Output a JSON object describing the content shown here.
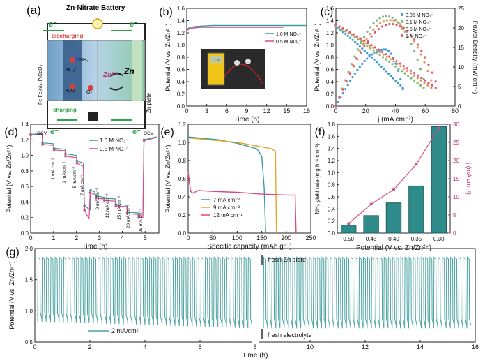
{
  "panels": {
    "a": "(a)",
    "b": "(b)",
    "c": "(c)",
    "d": "(d)",
    "e": "(e)",
    "f": "(f)",
    "g": "(g)"
  },
  "schematic": {
    "title": "Zn-Nitrate Battery",
    "electron_left": "e⁻",
    "electron_right": "e⁻",
    "electron_bottom_left": "e⁻",
    "electron_bottom_right": "e⁻",
    "discharging": "discharging",
    "charging": "charging",
    "cathode_label": "Fe-FeₓNiₓ₋P/CeO₂",
    "anode_label": "Zn plate",
    "no3": "NO₃⁻",
    "nh3": "NH₃",
    "h2o": "H₂O",
    "o2": "O₂",
    "zn2": "Zn²⁺",
    "zn": "Zn"
  },
  "chart_data": [
    {
      "id": "b",
      "type": "line",
      "xlabel": "Time (h)",
      "ylabel": "Potential (V vs. Zn/Zn²⁺)",
      "xlim": [
        0,
        18
      ],
      "ylim": [
        0,
        1.6
      ],
      "xticks": [
        0,
        3,
        6,
        9,
        12,
        15,
        18
      ],
      "yticks": [
        0.0,
        0.2,
        0.4,
        0.6,
        0.8,
        1.0,
        1.2,
        1.4,
        1.6
      ],
      "series": [
        {
          "name": "1.0 M NO₃⁻",
          "color": "#3a9b9b",
          "x": [
            0,
            0.5,
            1,
            2,
            4,
            8,
            12,
            15,
            18
          ],
          "y": [
            1.26,
            1.29,
            1.3,
            1.31,
            1.32,
            1.32,
            1.32,
            1.32,
            1.32
          ]
        },
        {
          "name": "0.5 M NO₃⁻",
          "color": "#d44a86",
          "x": [
            0,
            0.5,
            1,
            2,
            4,
            8,
            12,
            14.5
          ],
          "y": [
            1.24,
            1.27,
            1.28,
            1.29,
            1.29,
            1.29,
            1.29,
            1.29
          ]
        }
      ],
      "inset_meter": "12.70"
    },
    {
      "id": "c",
      "type": "scatter",
      "xlabel": "j (mA cm⁻²)",
      "ylabel": "Potential (V vs. Zn/Zn²⁺)",
      "y2label": "Power Density (mW cm⁻²)",
      "xlim": [
        0,
        80
      ],
      "ylim": [
        0,
        1.6
      ],
      "y2lim": [
        0,
        25
      ],
      "xticks": [
        0,
        20,
        40,
        60,
        80
      ],
      "yticks": [
        0.0,
        0.2,
        0.4,
        0.6,
        0.8,
        1.0,
        1.2,
        1.4,
        1.6
      ],
      "y2ticks": [
        0,
        5,
        10,
        15,
        20,
        25
      ],
      "series": [
        {
          "name": "0.05 M NO₃⁻",
          "color": "#3d9bd8",
          "jmax": 45,
          "v0": 1.3,
          "pmax": 14.5,
          "pj": 33
        },
        {
          "name": "0.1 M NO₃⁻",
          "color": "#7cb87a",
          "jmax": 59,
          "v0": 1.31,
          "pmax": 23,
          "pj": 34
        },
        {
          "name": "0.5 M NO₃⁻",
          "color": "#e3945a",
          "jmax": 64,
          "v0": 1.32,
          "pmax": 22,
          "pj": 36
        },
        {
          "name": "1 M NO₃⁻",
          "color": "#e0586f",
          "jmax": 67,
          "v0": 1.33,
          "pmax": 21,
          "pj": 37
        }
      ]
    },
    {
      "id": "d",
      "type": "line",
      "xlabel": "Time (h)",
      "ylabel": "Potential (V vs. Zn/Zn²⁺)",
      "xlim": [
        0,
        5.6
      ],
      "ylim": [
        0.0,
        1.4
      ],
      "xticks": [
        0,
        1,
        2,
        3,
        4,
        5
      ],
      "yticks": [
        0.0,
        0.2,
        0.4,
        0.6,
        0.8,
        1.0,
        1.2,
        1.4
      ],
      "annotations": [
        "OCV",
        "1 mA cm⁻²",
        "3 mA cm⁻²",
        "5 mA cm⁻²",
        "7 mA cm⁻²",
        "9 mA cm⁻²",
        "12 mA cm⁻²",
        "15 mA cm⁻²",
        "20 mA cm⁻²",
        "25 mA cm⁻²",
        "OCV"
      ],
      "series": [
        {
          "name": "1.0 M NO₃⁻",
          "color": "#3a9b9b",
          "x": [
            0,
            0.5,
            0.52,
            1.0,
            1.02,
            1.5,
            1.52,
            2.0,
            2.02,
            2.3,
            2.35,
            2.6,
            2.62,
            2.8,
            2.85,
            3.2,
            3.22,
            3.7,
            3.72,
            4.2,
            4.22,
            4.7,
            4.72,
            4.9,
            4.95,
            5.5
          ],
          "y": [
            1.27,
            1.28,
            1.16,
            1.15,
            1.09,
            1.08,
            1.02,
            1.0,
            0.93,
            0.9,
            0.35,
            0.3,
            0.55,
            0.53,
            0.48,
            0.46,
            0.45,
            0.44,
            0.37,
            0.36,
            0.27,
            0.26,
            0.22,
            0.22,
            1.2,
            1.24
          ]
        },
        {
          "name": "0.5 M NO₃⁻",
          "color": "#d44a86",
          "x": [
            0,
            0.5,
            0.52,
            1.0,
            1.02,
            1.5,
            1.52,
            2.0,
            2.02,
            2.3,
            2.35,
            2.55,
            2.6,
            2.8,
            2.85,
            3.2,
            3.22,
            3.7,
            3.72,
            4.2,
            4.22,
            4.7,
            4.72,
            4.9,
            4.95,
            5.5
          ],
          "y": [
            1.26,
            1.27,
            1.14,
            1.13,
            1.07,
            1.06,
            0.99,
            0.97,
            0.9,
            0.86,
            0.3,
            0.18,
            0.52,
            0.5,
            0.45,
            0.44,
            0.42,
            0.41,
            0.35,
            0.34,
            0.25,
            0.24,
            0.2,
            0.2,
            1.19,
            1.23
          ]
        }
      ]
    },
    {
      "id": "e",
      "type": "line",
      "xlabel": "Specific capacity (mAh g⁻¹)",
      "ylabel": "Potential (V vs. Zn/Zn²⁺)",
      "xlim": [
        0,
        250
      ],
      "ylim": [
        0.0,
        1.2
      ],
      "xticks": [
        0,
        50,
        100,
        150,
        200,
        250
      ],
      "yticks": [
        0.0,
        0.2,
        0.4,
        0.6,
        0.8,
        1.0,
        1.2
      ],
      "series": [
        {
          "name": "7 mA cm⁻²",
          "color": "#3a9b9b",
          "x": [
            0,
            20,
            60,
            100,
            140,
            150,
            155,
            158
          ],
          "y": [
            1.06,
            1.05,
            1.03,
            0.99,
            0.93,
            0.85,
            0.5,
            0.0
          ]
        },
        {
          "name": "9 mA cm⁻²",
          "color": "#e0a72a",
          "x": [
            0,
            20,
            60,
            100,
            140,
            170,
            178,
            180
          ],
          "y": [
            1.05,
            1.04,
            1.02,
            1.0,
            0.96,
            0.93,
            0.9,
            0.0
          ]
        },
        {
          "name": "12 mA cm⁻²",
          "color": "#d44a86",
          "x": [
            0,
            2,
            5,
            10,
            20,
            50,
            100,
            150,
            200,
            218,
            220
          ],
          "y": [
            0.68,
            0.58,
            0.46,
            0.44,
            0.47,
            0.46,
            0.45,
            0.43,
            0.42,
            0.42,
            0.0
          ]
        }
      ]
    },
    {
      "id": "f",
      "type": "bar",
      "xlabel": "Potential (V vs. Zn/Zn²⁺)",
      "ylabel": "NH₃ yield rate (mg h⁻¹ cm⁻²)",
      "y2label": "j (mA cm⁻²)",
      "categories": [
        "0.50",
        "0.45",
        "0.40",
        "0.35",
        "0.30"
      ],
      "values": [
        0.13,
        0.29,
        0.5,
        0.78,
        1.76
      ],
      "line_values": [
        2.6,
        8.0,
        12.0,
        19.0,
        29.0
      ],
      "ylim": [
        0,
        1.8
      ],
      "y2lim": [
        0,
        30
      ],
      "yticks": [
        0.0,
        0.2,
        0.4,
        0.6,
        0.8,
        1.0,
        1.2,
        1.4,
        1.6,
        1.8
      ],
      "y2ticks": [
        0,
        5,
        10,
        15,
        20,
        25,
        30
      ]
    },
    {
      "id": "g",
      "type": "line",
      "xlabel": "Time (h)",
      "ylabel": "Potential (V vs. Zn/Zn²⁺)",
      "xlim": [
        0,
        16
      ],
      "ylim": [
        0.5,
        2.0
      ],
      "xticks": [
        0,
        2,
        4,
        6,
        8,
        10,
        12,
        14,
        16
      ],
      "yticks": [
        0.5,
        1.0,
        1.5,
        2.0
      ],
      "legend": "2 mA/cm²",
      "annotation_top": "fresh Zn  plate",
      "annotation_bottom": "fresh electrolyte",
      "segments": [
        {
          "x0": 0,
          "x1": 8,
          "cycles": 50,
          "high": 1.86,
          "low_start": 0.83,
          "low_end": 0.72
        },
        {
          "x0": 8,
          "x1": 16,
          "cycles": 50,
          "high": 1.86,
          "low_start": 0.72,
          "low_end": 0.72
        }
      ],
      "color": "#4aa3a0"
    }
  ]
}
